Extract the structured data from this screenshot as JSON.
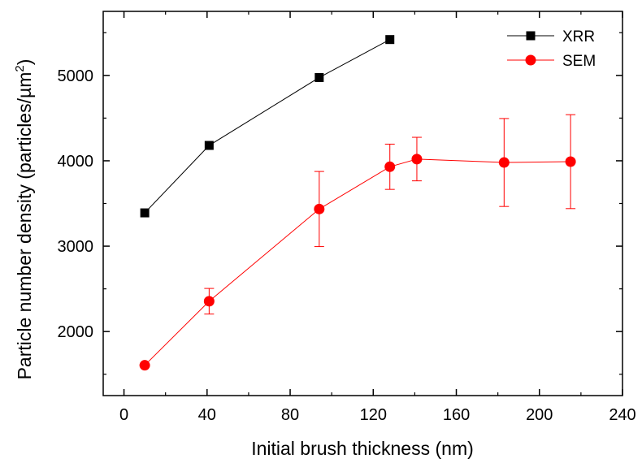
{
  "chart_data": {
    "type": "scatter",
    "xlabel": "Initial brush thickness (nm)",
    "ylabel_main": "Particle number density (particles/",
    "ylabel_unit": "µm",
    "ylabel_sup": "2",
    "ylabel_close": ")",
    "xlim": [
      -10,
      240
    ],
    "ylim": [
      1250,
      5750
    ],
    "xticks": [
      0,
      40,
      80,
      120,
      160,
      200,
      240
    ],
    "xtick_labels": [
      "0",
      "40",
      "80",
      "120",
      "160",
      "200",
      "240"
    ],
    "yticks": [
      2000,
      3000,
      4000,
      5000
    ],
    "ytick_labels": [
      "2000",
      "3000",
      "4000",
      "5000"
    ],
    "legend_position": "top-right",
    "series": [
      {
        "name": "XRR",
        "color": "#000000",
        "marker": "square",
        "x": [
          10,
          41,
          94,
          128
        ],
        "y": [
          3390,
          4180,
          4975,
          5420
        ]
      },
      {
        "name": "SEM",
        "color": "#ff0000",
        "marker": "circle",
        "x": [
          10,
          41,
          94,
          128,
          141,
          183,
          215
        ],
        "y": [
          1605,
          2355,
          3435,
          3930,
          4020,
          3980,
          3990
        ],
        "err": [
          0,
          150,
          440,
          265,
          255,
          515,
          550
        ]
      }
    ]
  }
}
